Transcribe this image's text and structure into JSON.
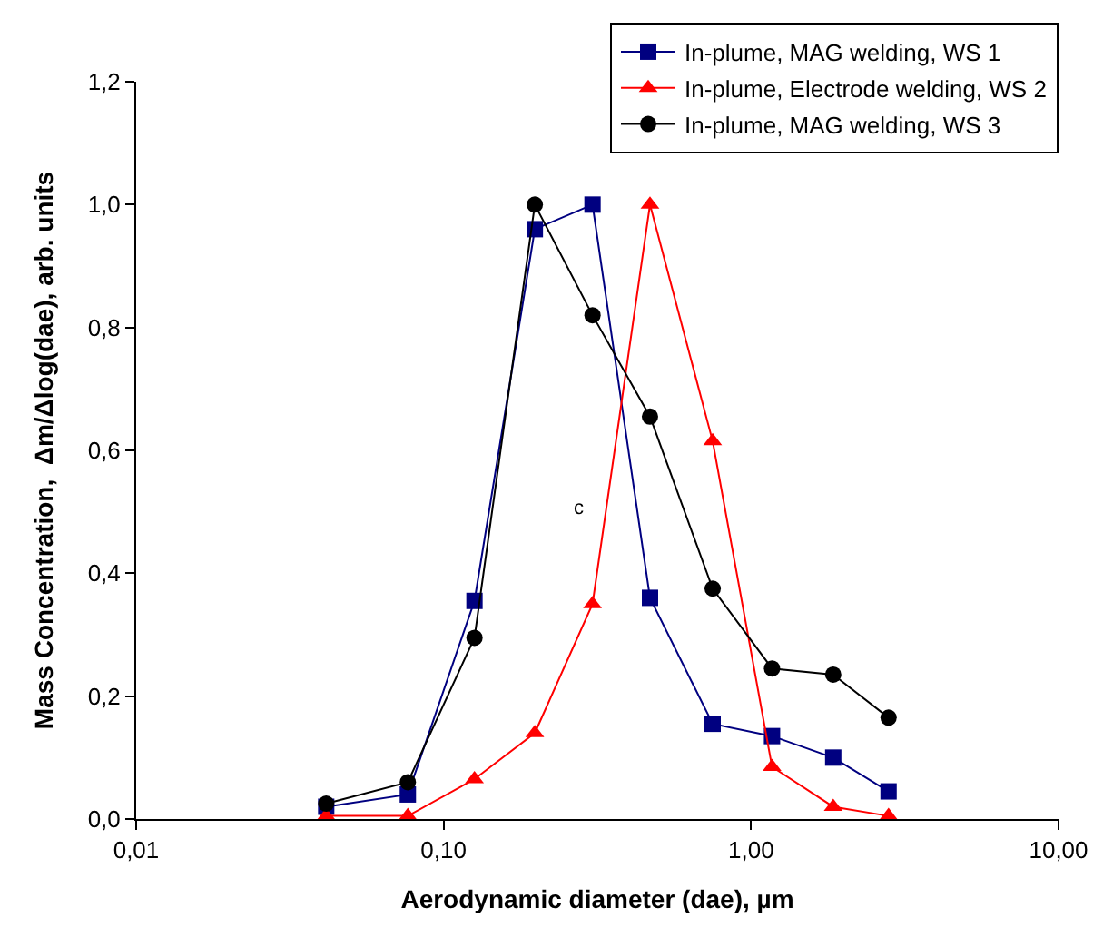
{
  "chart_data": {
    "type": "line",
    "xlabel": "Aerodynamic diameter (dae), µm",
    "ylabel": "Mass Concentration,  Δm/Δlog(dae), arb. units",
    "x": [
      0.0415,
      0.0765,
      0.126,
      0.198,
      0.305,
      0.469,
      0.75,
      1.17,
      1.85,
      2.8
    ],
    "series": [
      {
        "name": "In-plume, MAG welding, WS 1",
        "color": "#000080",
        "marker": "square",
        "values": [
          0.02,
          0.04,
          0.355,
          0.96,
          1.0,
          0.36,
          0.155,
          0.135,
          0.1,
          0.045
        ]
      },
      {
        "name": "In-plume, Electrode welding, WS 2",
        "color": "#ff0000",
        "marker": "triangle",
        "values": [
          0.005,
          0.005,
          0.065,
          0.14,
          0.35,
          1.0,
          0.615,
          0.085,
          0.02,
          0.005
        ]
      },
      {
        "name": "In-plume, MAG welding, WS 3",
        "color": "#000000",
        "marker": "circle",
        "values": [
          0.025,
          0.06,
          0.295,
          1.0,
          0.82,
          0.655,
          0.375,
          0.245,
          0.235,
          0.165
        ]
      }
    ],
    "log": "x",
    "xlim": [
      0.01,
      10
    ],
    "xticks": [
      {
        "value": 0.01,
        "label": "0,01"
      },
      {
        "value": 0.1,
        "label": "0,10"
      },
      {
        "value": 1,
        "label": "1,00"
      },
      {
        "value": 10,
        "label": "10,00"
      }
    ],
    "ylim": [
      0,
      1.2
    ],
    "yticks": [
      {
        "value": 0,
        "label": "0,0"
      },
      {
        "value": 0.2,
        "label": "0,2"
      },
      {
        "value": 0.4,
        "label": "0,4"
      },
      {
        "value": 0.6,
        "label": "0,6"
      },
      {
        "value": 0.8,
        "label": "0,8"
      },
      {
        "value": 1.0,
        "label": "1,0"
      },
      {
        "value": 1.2,
        "label": "1,2"
      }
    ],
    "annotations": [
      "c"
    ],
    "legend": "top right",
    "line_style": "solid"
  }
}
